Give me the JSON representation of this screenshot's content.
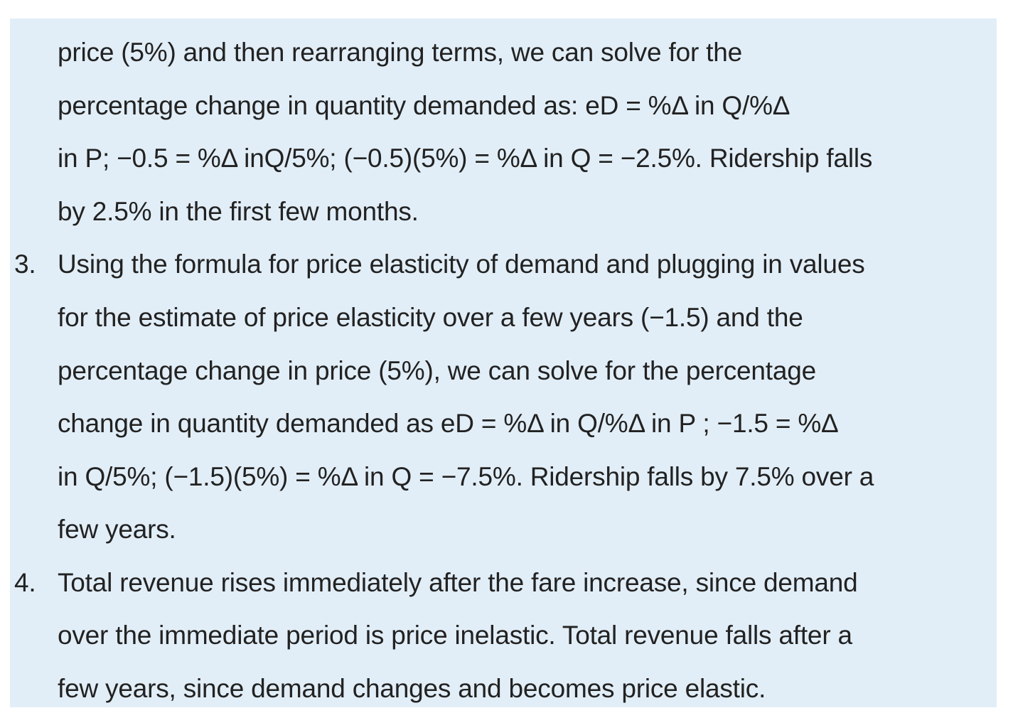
{
  "item2": {
    "lines": [
      "price (5%) and then rearranging terms, we can solve for the",
      "percentage change in quantity demanded as: eD = %Δ in Q/%Δ",
      "in P; −0.5 = %Δ inQ/5%; (−0.5)(5%) = %Δ in Q = −2.5%. Ridership falls",
      "by 2.5% in the first few months."
    ]
  },
  "item3": {
    "number": "3.",
    "lines": [
      "Using the formula for price elasticity of demand and plugging in values",
      "for the estimate of price elasticity over a few years (−1.5) and the",
      "percentage change in price (5%), we can solve for the percentage",
      "change in quantity demanded as eD = %Δ in Q/%Δ in P ; −1.5 = %Δ",
      "in Q/5%; (−1.5)(5%) = %Δ in Q = −7.5%. Ridership falls by 7.5% over a",
      "few years."
    ]
  },
  "item4": {
    "number": "4.",
    "lines": [
      "Total revenue rises immediately after the fare increase, since demand",
      "over the immediate period is price inelastic. Total revenue falls after a",
      "few years, since demand changes and becomes price elastic."
    ]
  }
}
